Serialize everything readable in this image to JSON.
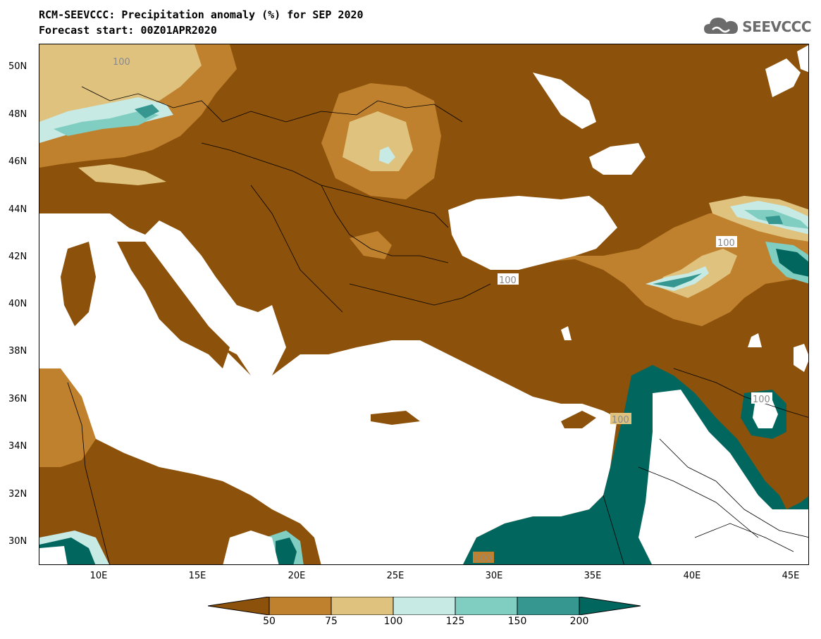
{
  "header": {
    "title_line1": "RCM-SEEVCCC: Precipitation anomaly (%) for SEP 2020",
    "title_line2": "Forecast start: 00Z01APR2020"
  },
  "logo": {
    "text": "SEEVCCC",
    "icon": "cloud-icon"
  },
  "map": {
    "lat_ticks": [
      "50N",
      "48N",
      "46N",
      "44N",
      "42N",
      "40N",
      "38N",
      "36N",
      "34N",
      "32N",
      "30N"
    ],
    "lon_ticks": [
      "10E",
      "15E",
      "20E",
      "25E",
      "30E",
      "35E",
      "40E",
      "45E"
    ],
    "contour_labels": [
      "100",
      "100",
      "100",
      "100",
      "100",
      "100"
    ],
    "colors": {
      "below_50": "#8c510a",
      "50_75": "#bf812d",
      "75_100": "#dfc27d",
      "100_125": "#c7eae5",
      "125_150": "#80cdc1",
      "150_200": "#35978f",
      "above_200": "#01665e",
      "sea": "#ffffff"
    }
  },
  "colorbar": {
    "levels": [
      "50",
      "75",
      "100",
      "125",
      "150",
      "200"
    ],
    "colors": [
      "#8c510a",
      "#bf812d",
      "#dfc27d",
      "#c7eae5",
      "#80cdc1",
      "#35978f",
      "#01665e"
    ]
  }
}
